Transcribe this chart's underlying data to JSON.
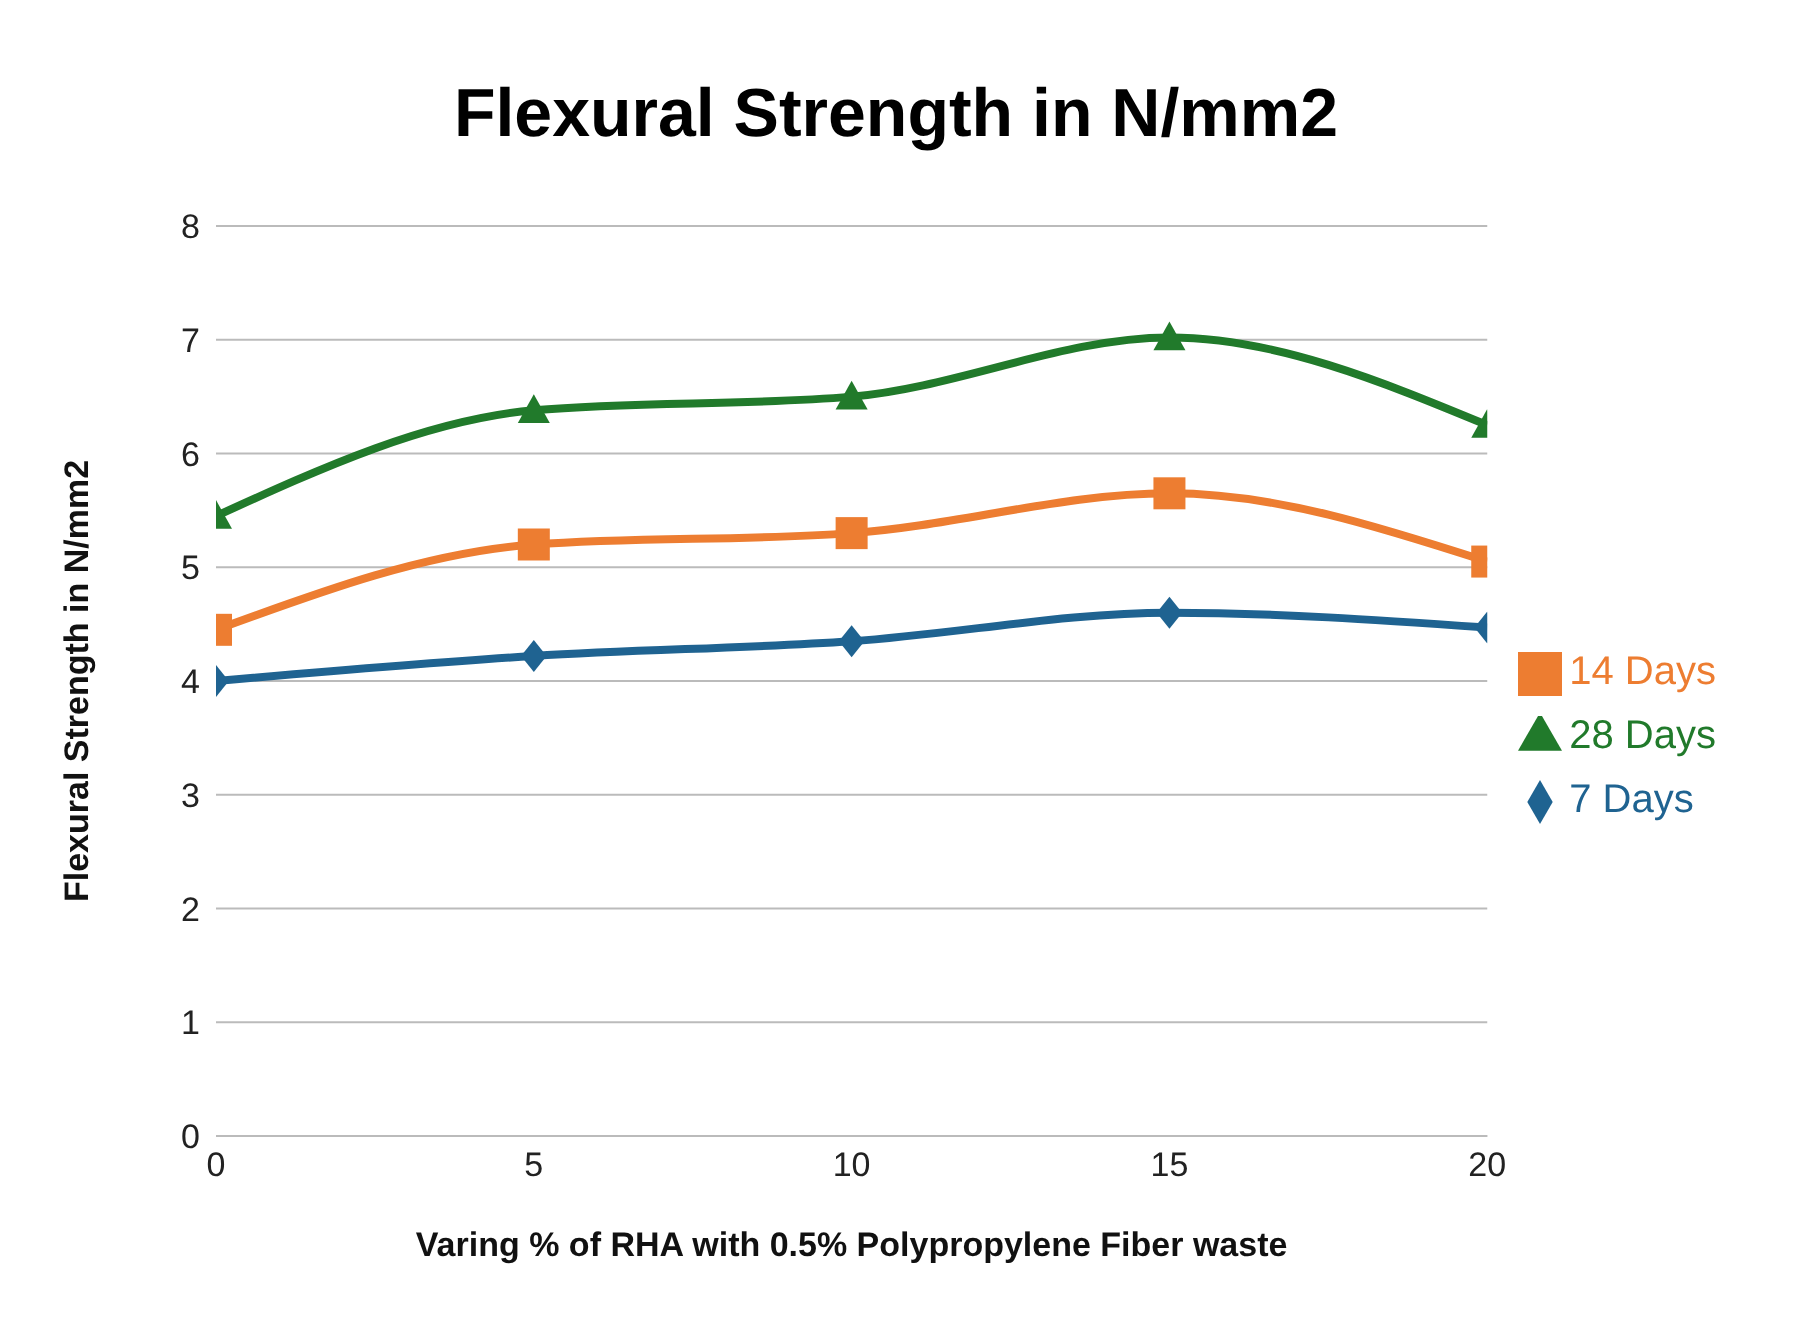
{
  "chart_data": {
    "type": "line",
    "title": "Flexural Strength in N/mm2",
    "xlabel": "Varing % of RHA with 0.5% Polypropylene Fiber waste",
    "ylabel": "Flexural Strength in N/mm2",
    "x": [
      0,
      5,
      10,
      15,
      20
    ],
    "series": [
      {
        "name": "7 Days",
        "color": "#1f6391",
        "marker": "diamond",
        "values": [
          4.0,
          4.22,
          4.35,
          4.6,
          4.47
        ]
      },
      {
        "name": "14 Days",
        "color": "#ed7d31",
        "marker": "square",
        "values": [
          4.45,
          5.2,
          5.3,
          5.65,
          5.05
        ]
      },
      {
        "name": "28 Days",
        "color": "#217a2b",
        "marker": "triangle",
        "values": [
          5.45,
          6.38,
          6.5,
          7.02,
          6.25
        ]
      }
    ],
    "xlim": [
      0,
      20
    ],
    "xticks": [
      0,
      5,
      10,
      15,
      20
    ],
    "ylim": [
      0,
      8
    ],
    "yticks": [
      0,
      1,
      2,
      3,
      4,
      5,
      6,
      7,
      8
    ],
    "grid": "y",
    "legend": "right",
    "line_style": "solid"
  }
}
